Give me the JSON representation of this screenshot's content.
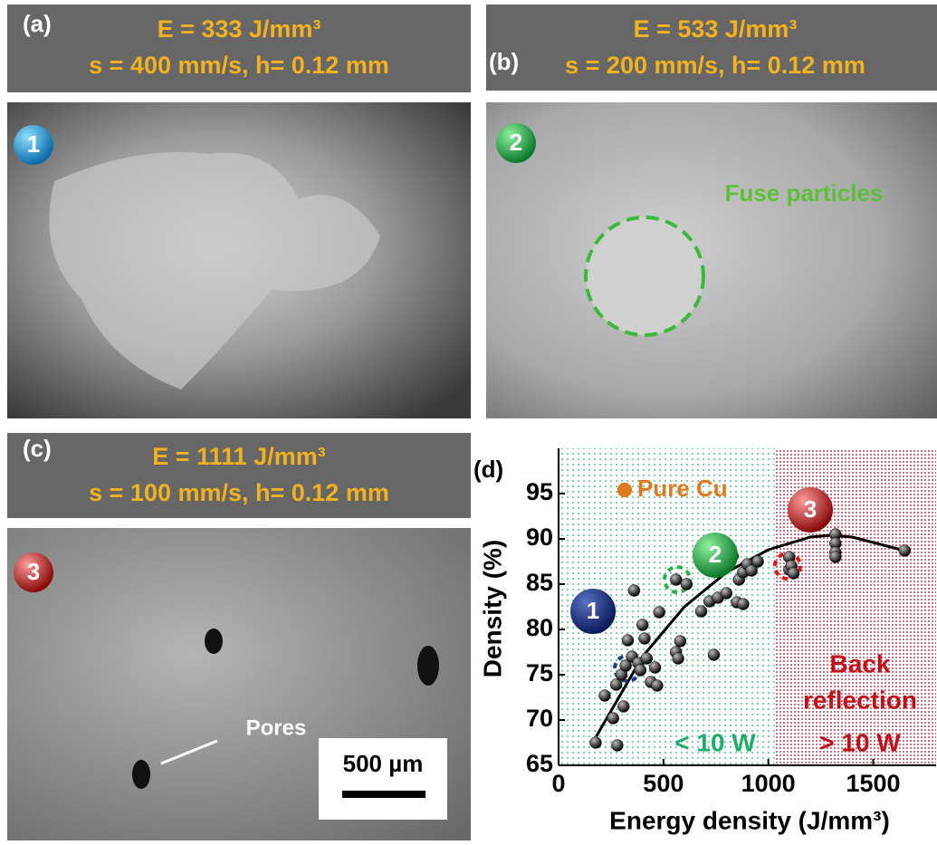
{
  "panels": [
    {
      "letter": "(a)",
      "line1": "E = 333 J/mm³",
      "line2": "s = 400 mm/s, h= 0.12 mm",
      "badge": "1"
    },
    {
      "letter": "(b)",
      "line1": "E = 533 J/mm³",
      "line2": "s = 200 mm/s, h= 0.12 mm",
      "badge": "2",
      "note": "Fuse particles"
    },
    {
      "letter": "(c)",
      "line1": "E = 1111 J/mm³",
      "line2": "s = 100 mm/s, h= 0.12 mm",
      "badge": "3",
      "note": "Pores",
      "scale_bar": "500 µm"
    }
  ],
  "chart_data": {
    "type": "scatter",
    "letter": "(d)",
    "xlabel": "Energy density (J/mm³)",
    "ylabel": "Density (%)",
    "xlim": [
      0,
      1800
    ],
    "xticks": [
      0,
      500,
      1000,
      1500
    ],
    "ylim": [
      65,
      100
    ],
    "yticks": [
      65,
      70,
      75,
      80,
      85,
      90,
      95
    ],
    "series": [
      {
        "color": "#111111",
        "x": [
          177,
          220,
          260,
          280,
          275,
          300,
          310,
          320,
          330,
          350,
          360,
          380,
          390,
          400,
          410,
          420,
          440,
          460,
          470,
          480,
          560,
          560,
          570,
          580,
          610,
          680,
          720,
          740,
          760,
          800,
          830,
          860,
          880,
          900,
          920,
          950,
          850,
          880,
          1100,
          1100,
          1110,
          1120,
          1320,
          1320,
          1320,
          1320,
          1650
        ],
        "y": [
          67.5,
          72.7,
          70.2,
          67.2,
          73.9,
          75.0,
          71.5,
          76.0,
          78.8,
          77.0,
          84.3,
          76.3,
          75.5,
          80.5,
          79.0,
          76.8,
          74.2,
          75.8,
          73.8,
          81.9,
          85.5,
          77.5,
          76.8,
          78.7,
          85.0,
          82.0,
          83.1,
          77.2,
          83.5,
          84.0,
          88.1,
          85.5,
          86.3,
          87.2,
          86.5,
          87.5,
          83.0,
          82.8,
          88.0,
          86.6,
          87.0,
          86.2,
          90.5,
          89.5,
          88.5,
          88.0,
          88.7
        ]
      },
      {
        "name": "Pure Cu",
        "color": "#e07a20",
        "x": [
          315
        ],
        "y": [
          95.4
        ]
      }
    ],
    "fit": {
      "color": "#000000",
      "x": [
        180,
        400,
        600,
        800,
        1000,
        1200,
        1300,
        1400,
        1650
      ],
      "y": [
        68.2,
        77.0,
        82.5,
        86.3,
        88.8,
        90.2,
        90.4,
        90.2,
        88.7
      ]
    },
    "regions": [
      {
        "xrange": [
          0,
          1030
        ],
        "color": "#1fae6a",
        "lines": [
          "< 10 W"
        ]
      },
      {
        "xrange": [
          1030,
          1800
        ],
        "color": "#c0101a",
        "lines": [
          "Back",
          "reflection",
          "> 10 W"
        ]
      }
    ],
    "annotations": [
      {
        "text": "1"
      },
      {
        "text": "2"
      },
      {
        "text": "3"
      }
    ]
  }
}
